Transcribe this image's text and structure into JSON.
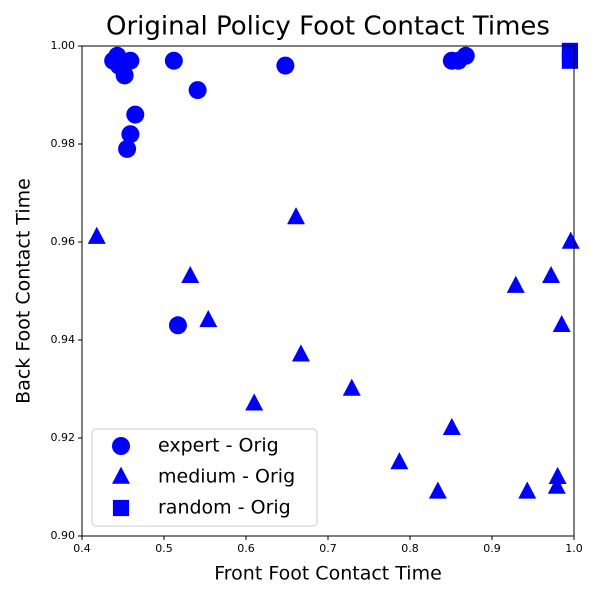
{
  "chart_data": {
    "type": "scatter",
    "title": "Original Policy Foot Contact Times",
    "x_label": "Front Foot Contact Time",
    "y_label": "Back Foot Contact Time",
    "xlim": [
      0.4,
      1.0
    ],
    "ylim": [
      0.9,
      1.0
    ],
    "xticks": [
      0.4,
      0.5,
      0.6,
      0.7,
      0.8,
      0.9,
      {
        "value": 1.0,
        "label": "1.0"
      }
    ],
    "yticks": [
      {
        "value": 0.9,
        "label": "0.90"
      },
      0.92,
      0.94,
      0.96,
      0.98,
      {
        "value": 1.0,
        "label": "1.00"
      }
    ],
    "legend": "lower left",
    "series": [
      {
        "name": "expert - Orig",
        "color": "#0000ff",
        "marker": "circle",
        "x": [
          0.438,
          0.443,
          0.445,
          0.449,
          0.452,
          0.459,
          0.465,
          0.459,
          0.455,
          0.512,
          0.541,
          0.648,
          0.517,
          0.851,
          0.859,
          0.868
        ],
        "values": [
          0.997,
          0.998,
          0.996,
          0.9955,
          0.994,
          0.997,
          0.986,
          0.982,
          0.979,
          0.997,
          0.991,
          0.996,
          0.943,
          0.997,
          0.997,
          0.998
        ]
      },
      {
        "name": "medium - Orig",
        "color": "#0000ff",
        "marker": "triangle",
        "x": [
          0.418,
          0.532,
          0.554,
          0.61,
          0.661,
          0.667,
          0.729,
          0.787,
          0.834,
          0.851,
          0.929,
          0.943,
          0.972,
          0.985,
          0.996,
          0.98,
          0.979
        ],
        "values": [
          0.961,
          0.953,
          0.944,
          0.927,
          0.965,
          0.937,
          0.93,
          0.915,
          0.909,
          0.922,
          0.951,
          0.909,
          0.953,
          0.943,
          0.96,
          0.912,
          0.91
        ]
      },
      {
        "name": "random - Orig",
        "color": "#0000ff",
        "marker": "square",
        "x": [
          0.995,
          0.995
        ],
        "values": [
          0.999,
          0.997
        ]
      }
    ]
  }
}
